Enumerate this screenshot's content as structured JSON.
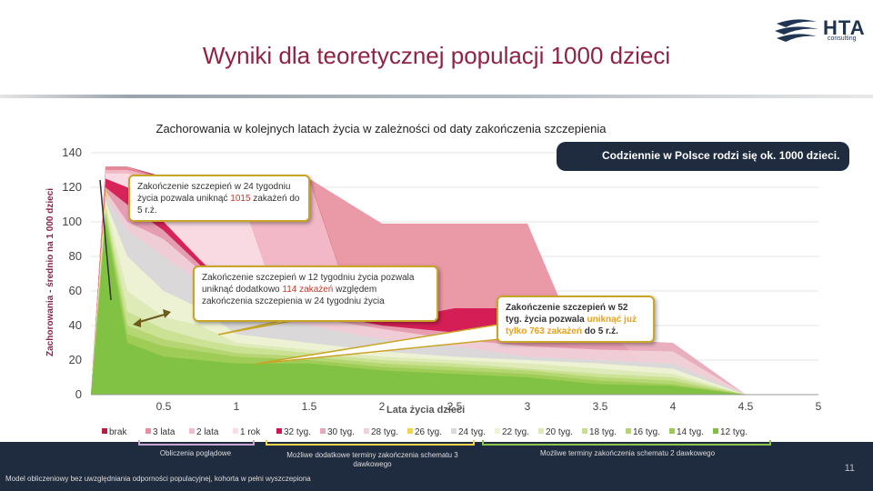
{
  "title": "Wyniki dla teoretycznej populacji 1000 dzieci",
  "logo": {
    "main": "HTA",
    "sub": "consulting"
  },
  "subtitle": "Zachorowania w kolejnych latach życia w zależności od daty zakończenia szczepienia",
  "chart_data": {
    "type": "area",
    "ylabel": "Zachorowania - średnio na 1 000 dzieci",
    "xlabel": "Lata życia dzieci",
    "ylim": [
      0,
      140
    ],
    "xlim": [
      0,
      5
    ],
    "yticks": [
      "0",
      "20",
      "40",
      "60",
      "80",
      "100",
      "120",
      "140"
    ],
    "xticks": [
      "0.5",
      "1",
      "1.5",
      "2",
      "2.5",
      "3",
      "3.5",
      "4",
      "4.5",
      "5"
    ],
    "grid": true,
    "legend_position": "bottom",
    "series": [
      {
        "name": "brak",
        "color": "#b3203f",
        "x": [
          0,
          0.1,
          0.25,
          0.5,
          1,
          1.5,
          2,
          2.5,
          3,
          3.5,
          4,
          4.5,
          5
        ],
        "y": [
          0,
          132,
          132,
          126,
          126,
          126,
          0,
          0,
          0,
          0,
          0,
          0,
          0
        ]
      },
      {
        "name": "3 lata",
        "color": "#e8909e",
        "x": [
          0,
          0.1,
          0.25,
          0.5,
          1,
          1.5,
          2,
          2.5,
          3,
          3.5,
          4,
          4.5,
          5
        ],
        "y": [
          0,
          132,
          132,
          125,
          125,
          125,
          99,
          99,
          99,
          0,
          0,
          0,
          0
        ]
      },
      {
        "name": "2 lata",
        "color": "#f4bccb",
        "x": [
          0,
          0.1,
          0.25,
          0.5,
          1,
          1.5,
          2,
          2.5,
          3,
          3.5,
          4,
          4.5,
          5
        ],
        "y": [
          0,
          130,
          130,
          125,
          124,
          124,
          0,
          0,
          0,
          0,
          0,
          0,
          0
        ]
      },
      {
        "name": "1 rok",
        "color": "#fadce4",
        "x": [
          0,
          0.1,
          0.25,
          0.5,
          1,
          1.5,
          2,
          2.5,
          3,
          3.5,
          4,
          4.5,
          5
        ],
        "y": [
          0,
          128,
          128,
          122,
          122,
          0,
          0,
          0,
          0,
          0,
          0,
          0,
          0
        ]
      },
      {
        "name": "32 tyg.",
        "color": "#d3134e",
        "x": [
          0,
          0.1,
          0.25,
          0.5,
          0.75,
          1,
          1.5,
          2,
          2.5,
          3,
          3.5,
          4,
          4.5,
          5
        ],
        "y": [
          0,
          125,
          120,
          100,
          78,
          58,
          50,
          42,
          50,
          50,
          42,
          0,
          0,
          0
        ]
      },
      {
        "name": "30 tyg.",
        "color": "#e8a8b8",
        "x": [
          0,
          0.1,
          0.25,
          0.5,
          0.75,
          1,
          1.5,
          2,
          2.5,
          3,
          3.5,
          4,
          4.5,
          5
        ],
        "y": [
          0,
          120,
          110,
          95,
          75,
          55,
          48,
          40,
          36,
          36,
          32,
          30,
          0,
          0
        ]
      },
      {
        "name": "28 tyg.",
        "color": "#f1d1d9",
        "x": [
          0,
          0.1,
          0.25,
          0.5,
          0.75,
          1,
          1.5,
          2,
          2.5,
          3,
          3.5,
          4,
          4.5,
          5
        ],
        "y": [
          0,
          118,
          100,
          90,
          72,
          50,
          45,
          38,
          32,
          28,
          26,
          25,
          0,
          0
        ]
      },
      {
        "name": "26 tyg.",
        "color": "#f3d24c",
        "x": [
          0,
          0.1,
          0.2,
          0.25,
          0.5
        ],
        "y": [
          0,
          120,
          80,
          30,
          0
        ]
      },
      {
        "name": "24 tyg.",
        "color": "#d9d9d9",
        "x": [
          0,
          0.1,
          0.25,
          0.5,
          0.75,
          1,
          1.5,
          2,
          2.5,
          3,
          3.5,
          4,
          4.5,
          5
        ],
        "y": [
          0,
          115,
          95,
          80,
          65,
          45,
          40,
          32,
          28,
          22,
          20,
          18,
          0,
          0
        ]
      },
      {
        "name": "22 tyg.",
        "color": "#eef4d3",
        "x": [
          0,
          0.1,
          0.25,
          0.5,
          0.75,
          1,
          1.5,
          2,
          2.5,
          3,
          3.5,
          4,
          4.5,
          5
        ],
        "y": [
          0,
          112,
          80,
          60,
          50,
          35,
          30,
          25,
          22,
          20,
          18,
          15,
          0,
          0
        ]
      },
      {
        "name": "20 tyg.",
        "color": "#dde9b6",
        "x": [
          0,
          0.1,
          0.25,
          0.5,
          0.75,
          1,
          1.5,
          2,
          2.5,
          3,
          3.5,
          4,
          4.5,
          5
        ],
        "y": [
          0,
          110,
          60,
          45,
          40,
          30,
          26,
          22,
          20,
          18,
          15,
          12,
          0,
          0
        ]
      },
      {
        "name": "18 tyg.",
        "color": "#c9df8f",
        "x": [
          0,
          0.1,
          0.25,
          0.5,
          0.75,
          1,
          1.5,
          2,
          2.5,
          3,
          3.5,
          4,
          4.5,
          5
        ],
        "y": [
          0,
          108,
          48,
          38,
          32,
          28,
          24,
          20,
          18,
          15,
          12,
          10,
          0,
          0
        ]
      },
      {
        "name": "16 tyg.",
        "color": "#b3d570",
        "x": [
          0,
          0.1,
          0.25,
          0.5,
          0.75,
          1,
          1.5,
          2,
          2.5,
          3,
          3.5,
          4,
          4.5,
          5
        ],
        "y": [
          0,
          106,
          40,
          32,
          28,
          24,
          22,
          18,
          16,
          14,
          10,
          8,
          0,
          0
        ]
      },
      {
        "name": "14 tyg.",
        "color": "#9ccb55",
        "x": [
          0,
          0.1,
          0.25,
          0.5,
          0.75,
          1,
          1.5,
          2,
          2.5,
          3,
          3.5,
          4,
          4.5,
          5
        ],
        "y": [
          0,
          104,
          35,
          28,
          25,
          22,
          20,
          16,
          14,
          12,
          8,
          6,
          0,
          0
        ]
      },
      {
        "name": "12 tyg.",
        "color": "#7fc041",
        "x": [
          0,
          0.1,
          0.25,
          0.5,
          0.75,
          1,
          1.5,
          2,
          2.5,
          3,
          3.5,
          4,
          4.5,
          5
        ],
        "y": [
          0,
          100,
          30,
          22,
          20,
          18,
          18,
          14,
          12,
          10,
          6,
          5,
          0,
          0
        ]
      }
    ]
  },
  "callouts": {
    "top": "Codziennie w Polsce rodzi się ok. 1000 dzieci.",
    "c1_text1": "Zakończenie szczepień w 24 tygodniu życia pozwala uniknąć ",
    "c1_hl": "1015",
    "c1_text2": " zakażeń do 5 r.ż.",
    "c2_text1": "Zakończenie szczepień w 12 tygodniu życia pozwala uniknąć dodatkowo ",
    "c2_hl": "114 zakażeń",
    "c2_text2": " względem zakończenia szczepienia w 24 tygodniu życia",
    "c3_text1": "Zakończenie szczepień w 52 tyg. życia pozwala ",
    "c3_hl": "uniknąć już tylko 763 zakażeń",
    "c3_text2": " do 5 r.ż."
  },
  "footer": {
    "note1": "Obliczenia poglądowe",
    "note2": "Możliwe dodatkowe terminy zakończenia schematu 3 dawkowego",
    "note3": "Możliwe terminy zakończenia schematu 2 dawkowego",
    "model": "Model obliczeniowy bez uwzględniania odporności populacyjnej, kohorta w pełni wyszczepiona",
    "page": "11"
  }
}
